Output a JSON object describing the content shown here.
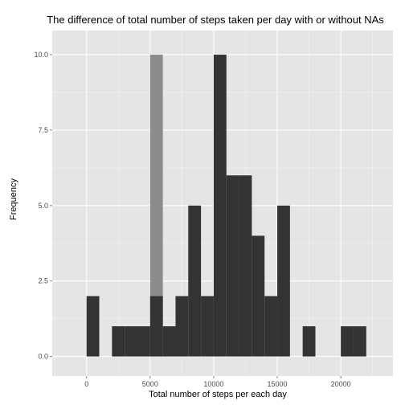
{
  "chart_data": {
    "type": "bar",
    "title": "The difference of total number of steps taken per day with or without NAs",
    "xlabel": "Total number of steps per each day",
    "ylabel": "Frequency",
    "xlim": [
      -2700,
      24100
    ],
    "ylim": [
      -0.65,
      10.8
    ],
    "x_ticks": [
      0,
      5000,
      10000,
      15000,
      20000
    ],
    "y_ticks": [
      0.0,
      2.5,
      5.0,
      7.5,
      10.0
    ],
    "y_tick_labels": [
      "0.0",
      "2.5",
      "5.0",
      "7.5",
      "10.0"
    ],
    "grid": true,
    "legend": "none",
    "bin_width": 1000,
    "series": [
      {
        "color": "#8c8c8c",
        "bins": [
          {
            "x0": 5000,
            "x1": 6000,
            "count": 10
          }
        ]
      },
      {
        "color": "#333333",
        "bins": [
          {
            "x0": 0,
            "x1": 1000,
            "count": 2
          },
          {
            "x0": 2000,
            "x1": 3000,
            "count": 1
          },
          {
            "x0": 3000,
            "x1": 4000,
            "count": 1
          },
          {
            "x0": 4000,
            "x1": 5000,
            "count": 1
          },
          {
            "x0": 5000,
            "x1": 6000,
            "count": 2
          },
          {
            "x0": 6000,
            "x1": 7000,
            "count": 1
          },
          {
            "x0": 7000,
            "x1": 8000,
            "count": 2
          },
          {
            "x0": 8000,
            "x1": 9000,
            "count": 5
          },
          {
            "x0": 9000,
            "x1": 10000,
            "count": 2
          },
          {
            "x0": 10000,
            "x1": 11000,
            "count": 10
          },
          {
            "x0": 11000,
            "x1": 12000,
            "count": 6
          },
          {
            "x0": 12000,
            "x1": 13000,
            "count": 6
          },
          {
            "x0": 13000,
            "x1": 14000,
            "count": 4
          },
          {
            "x0": 14000,
            "x1": 15000,
            "count": 2
          },
          {
            "x0": 15000,
            "x1": 16000,
            "count": 5
          },
          {
            "x0": 17000,
            "x1": 18000,
            "count": 1
          },
          {
            "x0": 20000,
            "x1": 21000,
            "count": 1
          },
          {
            "x0": 21000,
            "x1": 22000,
            "count": 1
          }
        ]
      }
    ],
    "colors": {
      "panel_background": "#e5e5e5",
      "grid_major": "#ffffff",
      "grid_minor": "#f2f2f2"
    }
  }
}
